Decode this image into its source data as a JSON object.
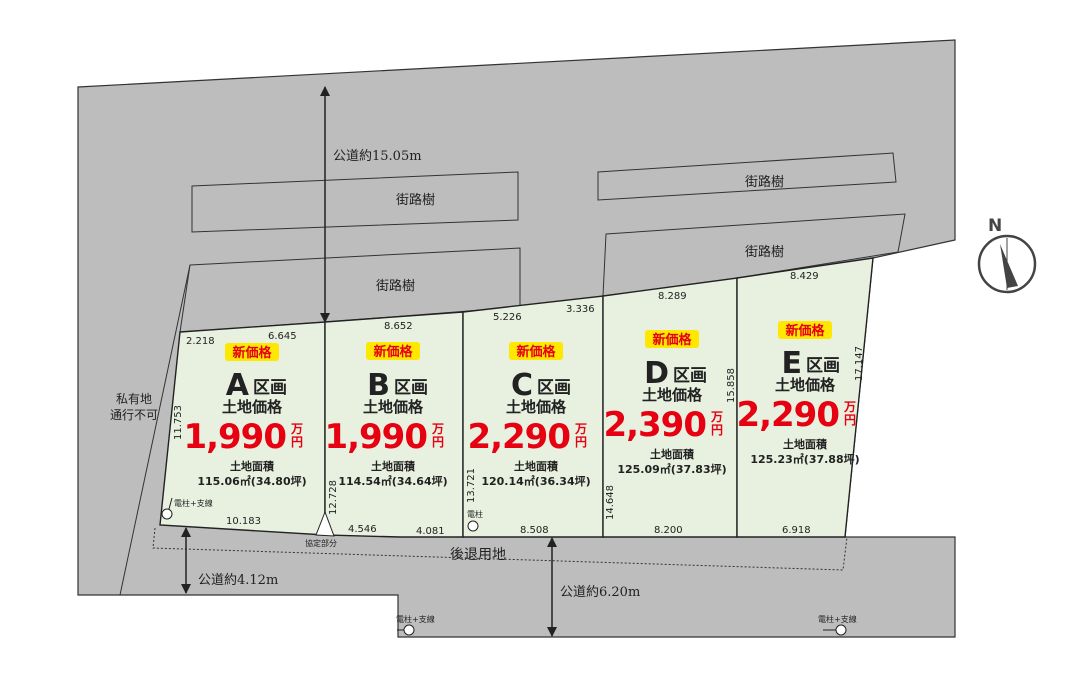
{
  "roads": {
    "north": "公道約15.05m",
    "west": "公道約4.12m",
    "south": "公道約6.20m",
    "setback": "後退用地",
    "private_land_line1": "私有地",
    "private_land_line2": "通行不可",
    "street_trees": "街路樹"
  },
  "badge": "新価格",
  "kuga_suffix": "区画",
  "price_label": "土地価格",
  "unit_top": "万",
  "unit_bottom": "円",
  "area_label": "土地面積",
  "lots": [
    {
      "letter": "A",
      "price": "1,990",
      "area": "115.06㎡(34.80坪)"
    },
    {
      "letter": "B",
      "price": "1,990",
      "area": "114.54㎡(34.64坪)"
    },
    {
      "letter": "C",
      "price": "2,290",
      "area": "120.14㎡(36.34坪)"
    },
    {
      "letter": "D",
      "price": "2,390",
      "area": "125.09㎡(37.83坪)"
    },
    {
      "letter": "E",
      "price": "2,290",
      "area": "125.23㎡(37.88坪)"
    }
  ],
  "dimensions": {
    "a_top_left": "2.218",
    "a_top": "6.645",
    "a_left": "11.753",
    "a_bottom": "10.183",
    "b_top": "8.652",
    "b_left": "12.728",
    "b_bottom_left": "4.546",
    "b_bottom_right": "4.081",
    "c_top_left": "5.226",
    "c_top_right": "3.336",
    "c_left": "13.721",
    "c_bottom": "8.508",
    "d_top": "8.289",
    "d_left": "14.648",
    "d_right": "15.858",
    "d_bottom": "8.200",
    "e_top": "8.429",
    "e_right": "17.147",
    "e_bottom": "6.918"
  },
  "notes": {
    "pole_guy": "電柱+支線",
    "pole": "電柱",
    "agreed_part": "協定部分"
  },
  "compass": "N",
  "colors": {
    "road": "#bdbdbe",
    "lot": "#e8f1e0",
    "price": "#e60012",
    "badge": "#ffe800"
  }
}
